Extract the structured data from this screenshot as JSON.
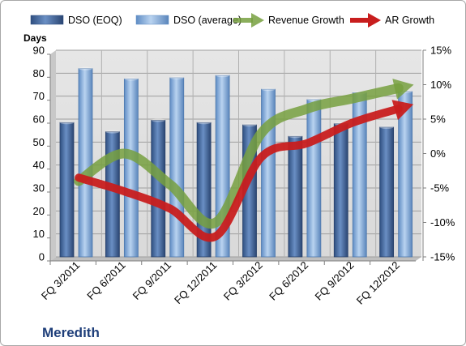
{
  "chart_data": {
    "type": "bar",
    "title": "Meredith",
    "ylabel": "Days",
    "categories": [
      "FQ 3/2011",
      "FQ 6/2011",
      "FQ 9/2011",
      "FQ 12/2011",
      "FQ 3/2012",
      "FQ 6/2012",
      "FQ 9/2012",
      "FQ 12/2012"
    ],
    "y_ticks": [
      "0",
      "10",
      "20",
      "30",
      "40",
      "50",
      "60",
      "70",
      "80",
      "90"
    ],
    "y2_ticks": [
      "-15%",
      "-10%",
      "-5%",
      "0%",
      "5%",
      "10%",
      "15%"
    ],
    "ylim": [
      0,
      90
    ],
    "y2lim": [
      -15,
      15
    ],
    "series": [
      {
        "name": "DSO (EOQ)",
        "type": "bar",
        "axis": "left",
        "color": "#4a6fa5",
        "values": [
          58.5,
          54.5,
          59.5,
          58.5,
          57.5,
          52.5,
          58.0,
          56.5
        ]
      },
      {
        "name": "DSO (average)",
        "type": "bar",
        "axis": "left",
        "color": "#8db3e2",
        "values": [
          82.0,
          77.5,
          78.0,
          79.0,
          73.0,
          68.5,
          71.5,
          72.0
        ]
      },
      {
        "name": "Revenue Growth",
        "type": "line",
        "axis": "right",
        "color": "#77a03f",
        "values": [
          -4.0,
          0.0,
          -4.5,
          -10.0,
          3.0,
          6.5,
          8.0,
          9.5
        ]
      },
      {
        "name": "AR Growth",
        "type": "line",
        "axis": "right",
        "color": "#c81e1e",
        "values": [
          -3.5,
          -5.5,
          -8.0,
          -12.0,
          -0.5,
          1.5,
          4.5,
          6.5
        ]
      }
    ],
    "grid": true,
    "legend": "top"
  }
}
